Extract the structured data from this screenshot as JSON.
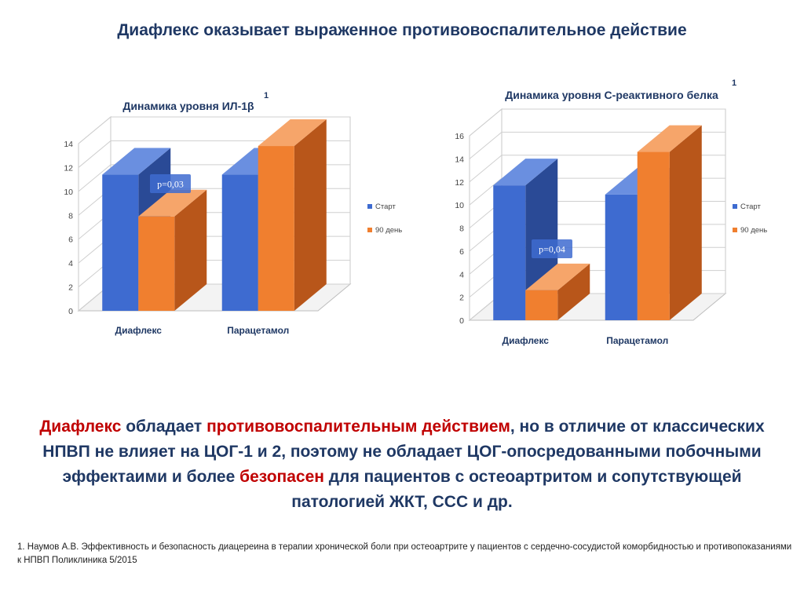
{
  "title": "Диафлекс оказывает выраженное противовоспалительное действие",
  "colors": {
    "start_front": "#3e6bd0",
    "start_side": "#2a4a96",
    "start_top": "#6a8fe0",
    "day90_front": "#f07f2f",
    "day90_side": "#b8561a",
    "day90_top": "#f6a56a",
    "text_dark": "#1f3864",
    "accent_red": "#c00000"
  },
  "chart_data": [
    {
      "type": "bar",
      "title": "Динамика уровня ИЛ-1β",
      "footnote_mark": "1",
      "categories": [
        "Диафлекс",
        "Парацетамол"
      ],
      "series": [
        {
          "name": "Старт",
          "values": [
            11.4,
            11.4
          ]
        },
        {
          "name": "90 день",
          "values": [
            7.9,
            13.8
          ]
        }
      ],
      "ylim": [
        0,
        14
      ],
      "yticks": [
        "0",
        "2",
        "4",
        "6",
        "8",
        "10",
        "12",
        "14"
      ],
      "annotation": "p=0,03",
      "grid": true,
      "legend": "right"
    },
    {
      "type": "bar",
      "title": "Динамика уровня С-реактивного белка",
      "footnote_mark": "1",
      "categories": [
        "Диафлекс",
        "Парацетамол"
      ],
      "series": [
        {
          "name": "Старт",
          "values": [
            11.7,
            10.9
          ]
        },
        {
          "name": "90 день",
          "values": [
            2.6,
            14.6
          ]
        }
      ],
      "ylim": [
        0,
        16
      ],
      "yticks": [
        "0",
        "2",
        "4",
        "6",
        "8",
        "10",
        "12",
        "14",
        "16"
      ],
      "annotation": "p=0,04",
      "grid": true,
      "legend": "right"
    }
  ],
  "body": {
    "part1": "Диафлекс",
    "part2": " обладает ",
    "part3": "противовоспалительным действием",
    "part4": ", но в отличие от классических НПВП не влияет на ЦОГ-1 и 2, поэтому не обладает ЦОГ-опосредованными побочными эффектаими и более ",
    "part5": "безопасен",
    "part6": " для пациентов с остеоартритом и сопутствующей патологией ЖКТ, ССС и др."
  },
  "footnote": "1. Наумов А.В.  Эффективность и безопасность диацереина в терапии хронической боли при остеоартрите у пациентов с сердечно-сосудистой коморбидностью и противопоказаниями к НПВП  Поликлиника 5/2015"
}
